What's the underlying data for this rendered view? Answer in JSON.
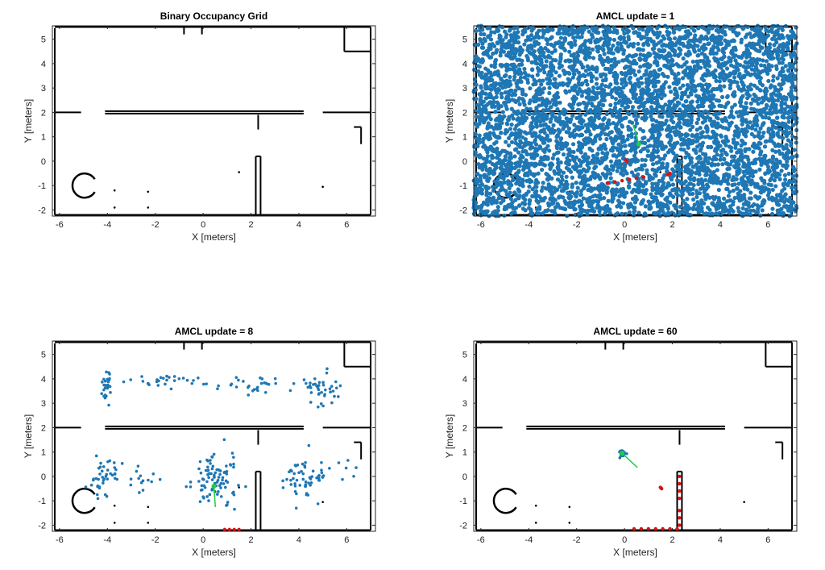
{
  "figure": {
    "background": "#ffffff"
  },
  "colors": {
    "particles": "#1f77b4",
    "walls": "#000000",
    "laser": "#dd1111",
    "pose": "#22cc44"
  },
  "chart_data": [
    {
      "type": "scatter",
      "id": "grid",
      "title": "Binary Occupancy Grid",
      "xlabel": "X [meters]",
      "ylabel": "Y [meters]",
      "xlim": [
        -6.3,
        7.2
      ],
      "ylim": [
        -2.25,
        5.55
      ],
      "xticks": [
        -6,
        -4,
        -2,
        0,
        2,
        4,
        6
      ],
      "yticks": [
        -2,
        -1,
        0,
        1,
        2,
        3,
        4,
        5
      ],
      "particles": {
        "mode": "none"
      },
      "laser": [],
      "pose": null
    },
    {
      "type": "scatter",
      "id": "u1",
      "title": "AMCL update = 1",
      "xlabel": "X [meters]",
      "ylabel": "Y [meters]",
      "xlim": [
        -6.3,
        7.2
      ],
      "ylim": [
        -2.25,
        5.55
      ],
      "xticks": [
        -6,
        -4,
        -2,
        0,
        2,
        4,
        6
      ],
      "yticks": [
        -2,
        -1,
        0,
        1,
        2,
        3,
        4,
        5
      ],
      "particles": {
        "mode": "uniform",
        "count": 5000,
        "seed": 11
      },
      "laser": [
        [
          -0.7,
          -0.9
        ],
        [
          -0.4,
          -0.85
        ],
        [
          -0.1,
          -0.8
        ],
        [
          0.2,
          -0.75
        ],
        [
          0.5,
          -0.7
        ],
        [
          0.8,
          -0.65
        ],
        [
          1.8,
          -0.55
        ],
        [
          1.9,
          -0.5
        ],
        [
          0.05,
          0.05
        ],
        [
          0.1,
          0.0
        ]
      ],
      "pose": {
        "x": 0.6,
        "y": 0.7,
        "theta": 1.85
      }
    },
    {
      "type": "scatter",
      "id": "u8",
      "title": "AMCL update = 8",
      "xlabel": "X [meters]",
      "ylabel": "Y [meters]",
      "xlim": [
        -6.3,
        7.2
      ],
      "ylim": [
        -2.25,
        5.55
      ],
      "xticks": [
        -6,
        -4,
        -2,
        0,
        2,
        4,
        6
      ],
      "yticks": [
        -2,
        -1,
        0,
        1,
        2,
        3,
        4,
        5
      ],
      "particles": {
        "mode": "clusters",
        "seed": 29,
        "clusters": [
          {
            "x": -4.1,
            "y": 3.7,
            "sx": 0.15,
            "sy": 0.3,
            "n": 25
          },
          {
            "x": -1.0,
            "y": 3.9,
            "sx": 1.3,
            "sy": 0.15,
            "n": 30
          },
          {
            "x": 2.2,
            "y": 3.8,
            "sx": 1.0,
            "sy": 0.18,
            "n": 30
          },
          {
            "x": 4.9,
            "y": 3.5,
            "sx": 0.4,
            "sy": 0.35,
            "n": 35
          },
          {
            "x": -4.3,
            "y": 0.1,
            "sx": 0.35,
            "sy": 0.5,
            "n": 40
          },
          {
            "x": -2.8,
            "y": -0.2,
            "sx": 0.6,
            "sy": 0.25,
            "n": 15
          },
          {
            "x": 0.5,
            "y": -0.1,
            "sx": 0.45,
            "sy": 0.5,
            "n": 90
          },
          {
            "x": 4.2,
            "y": -0.1,
            "sx": 0.45,
            "sy": 0.4,
            "n": 55
          },
          {
            "x": 5.8,
            "y": 0.5,
            "sx": 0.6,
            "sy": 0.8,
            "n": 8
          }
        ]
      },
      "laser": [
        [
          0.9,
          -2.18
        ],
        [
          1.1,
          -2.18
        ],
        [
          1.3,
          -2.18
        ],
        [
          1.5,
          -2.18
        ]
      ],
      "pose": {
        "x": 0.45,
        "y": -0.4,
        "theta": -1.5
      }
    },
    {
      "type": "scatter",
      "id": "u60",
      "title": "AMCL update = 60",
      "xlabel": "X [meters]",
      "ylabel": "Y [meters]",
      "xlim": [
        -6.3,
        7.2
      ],
      "ylim": [
        -2.25,
        5.55
      ],
      "xticks": [
        -6,
        -4,
        -2,
        0,
        2,
        4,
        6
      ],
      "yticks": [
        -2,
        -1,
        0,
        1,
        2,
        3,
        4,
        5
      ],
      "particles": {
        "mode": "clusters",
        "seed": 47,
        "clusters": [
          {
            "x": -0.1,
            "y": 0.95,
            "sx": 0.06,
            "sy": 0.06,
            "n": 35
          }
        ]
      },
      "laser": [
        [
          0.4,
          -2.15
        ],
        [
          0.7,
          -2.15
        ],
        [
          1.0,
          -2.15
        ],
        [
          1.3,
          -2.15
        ],
        [
          1.6,
          -2.15
        ],
        [
          1.9,
          -2.15
        ],
        [
          2.2,
          -2.15
        ],
        [
          2.3,
          -2.0
        ],
        [
          2.3,
          -1.7
        ],
        [
          2.3,
          -1.4
        ],
        [
          2.3,
          -0.9
        ],
        [
          2.3,
          -0.6
        ],
        [
          2.3,
          -0.3
        ],
        [
          2.3,
          0.0
        ],
        [
          1.5,
          -0.45
        ],
        [
          1.55,
          -0.5
        ]
      ],
      "pose": {
        "x": -0.1,
        "y": 0.95,
        "theta": -0.75
      }
    }
  ]
}
